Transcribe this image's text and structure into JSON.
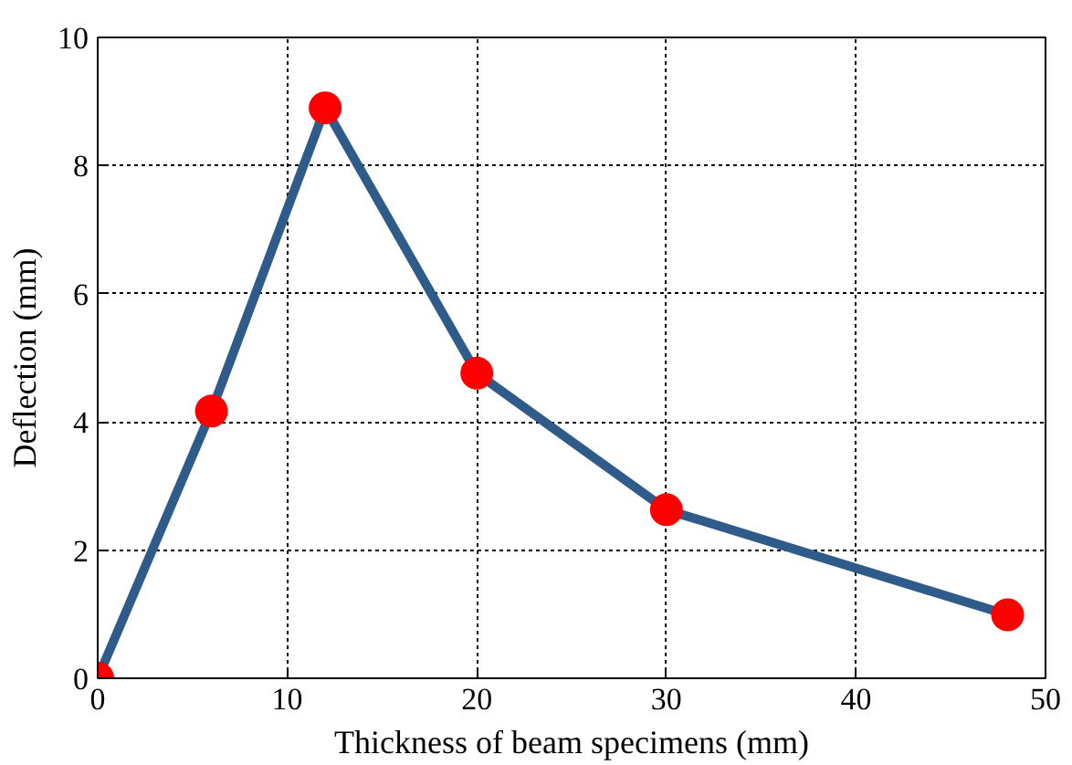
{
  "chart_data": {
    "type": "line",
    "xlabel": "Thickness of beam specimens (mm)",
    "ylabel": "Deflection (mm)",
    "x": [
      0,
      6,
      12,
      20,
      30,
      48
    ],
    "series": [
      {
        "color": "#2f5b8a",
        "colors": [
          "#ff0000",
          "#ff0000",
          "#ff0000",
          "#ff0000",
          "#ff0000",
          "#ff0000"
        ],
        "values": [
          0,
          4.17,
          8.9,
          4.76,
          2.63,
          0.99
        ]
      }
    ],
    "marker": "circle",
    "line_style": "solid",
    "xlim": [
      0,
      50
    ],
    "xticks": [
      0,
      10,
      20,
      30,
      40,
      50
    ],
    "ylim": [
      0,
      10
    ],
    "yticks": [
      0,
      2,
      4,
      6,
      8,
      10
    ],
    "grid": true
  }
}
